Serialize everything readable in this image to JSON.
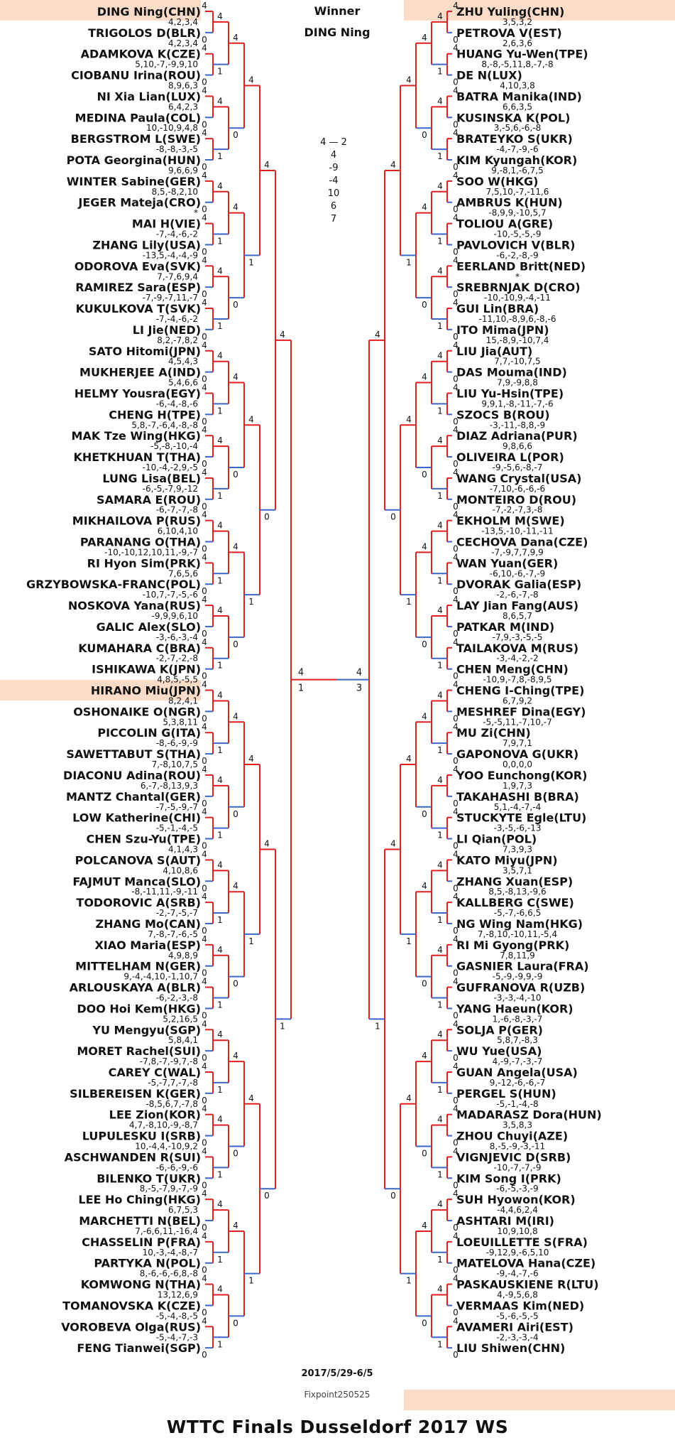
{
  "header": {
    "winner_label": "Winner",
    "winner_name": "DING Ning"
  },
  "footer": {
    "title": "WTTC Finals Dusseldorf 2017 WS",
    "dates": "2017/5/29-6/5",
    "credit": "Fixpoint250525"
  },
  "final": {
    "score_header": "4 — 2",
    "games": [
      "4",
      "-9",
      "-4",
      "10",
      "6",
      "7"
    ],
    "left_score": "4",
    "left_score_lo": "1",
    "right_score": "4",
    "right_score_lo": "3"
  },
  "colors": {
    "winner_line": "#e02020",
    "loser_line": "#3a66c8",
    "highlight_bg": "#fadcc8"
  },
  "left_players": [
    "DING Ning(CHN)",
    "TRIGOLOS D(BLR)",
    "ADAMKOVA K(CZE)",
    "CIOBANU Irina(ROU)",
    "NI Xia Lian(LUX)",
    "MEDINA Paula(COL)",
    "BERGSTROM L(SWE)",
    "POTA Georgina(HUN)",
    "WINTER Sabine(GER)",
    "JEGER Mateja(CRO)",
    "MAI H(VIE)",
    "ZHANG Lily(USA)",
    "ODOROVA Eva(SVK)",
    "RAMIREZ Sara(ESP)",
    "KUKULKOVA T(SVK)",
    "LI Jie(NED)",
    "SATO Hitomi(JPN)",
    "MUKHERJEE A(IND)",
    "HELMY Yousra(EGY)",
    "CHENG H(TPE)",
    "MAK Tze Wing(HKG)",
    "KHETKHUAN T(THA)",
    "LUNG Lisa(BEL)",
    "SAMARA E(ROU)",
    "MIKHAILOVA P(RUS)",
    "PARANANG O(THA)",
    "RI Hyon Sim(PRK)",
    "GRZYBOWSKA-FRANC(POL)",
    "NOSKOVA Yana(RUS)",
    "GALIC Alex(SLO)",
    "KUMAHARA C(BRA)",
    "ISHIKAWA K(JPN)",
    "HIRANO Miu(JPN)",
    "OSHONAIKE O(NGR)",
    "PICCOLIN G(ITA)",
    "SAWETTABUT S(THA)",
    "DIACONU Adina(ROU)",
    "MANTZ Chantal(GER)",
    "LOW Katherine(CHI)",
    "CHEN Szu-Yu(TPE)",
    "POLCANOVA S(AUT)",
    "FAJMUT Manca(SLO)",
    "TODOROVIC A(SRB)",
    "ZHANG Mo(CAN)",
    "XIAO Maria(ESP)",
    "MITTELHAM N(GER)",
    "ARLOUSKAYA A(BLR)",
    "DOO Hoi Kem(HKG)",
    "YU Mengyu(SGP)",
    "MORET Rachel(SUI)",
    "CAREY C(WAL)",
    "SILBEREISEN K(GER)",
    "LEE Zion(KOR)",
    "LUPULESKU I(SRB)",
    "ASCHWANDEN R(SUI)",
    "BILENKO T(UKR)",
    "LEE Ho Ching(HKG)",
    "MARCHETTI N(BEL)",
    "CHASSELIN P(FRA)",
    "PARTYKA N(POL)",
    "KOMWONG N(THA)",
    "TOMANOVSKA K(CZE)",
    "VOROBEVA Olga(RUS)",
    "FENG Tianwei(SGP)"
  ],
  "right_players": [
    "ZHU Yuling(CHN)",
    "PETROVA V(EST)",
    "HUANG Yu-Wen(TPE)",
    "DE N(LUX)",
    "BATRA Manika(IND)",
    "KUSINSKA K(POL)",
    "BRATEYKO S(UKR)",
    "KIM Kyungah(KOR)",
    "SOO W(HKG)",
    "AMBRUS K(HUN)",
    "TOLIOU A(GRE)",
    "PAVLOVICH V(BLR)",
    "EERLAND Britt(NED)",
    "SREBRNJAK D(CRO)",
    "GUI Lin(BRA)",
    "ITO Mima(JPN)",
    "LIU Jia(AUT)",
    "DAS Mouma(IND)",
    "LIU Yu-Hsin(TPE)",
    "SZOCS B(ROU)",
    "DIAZ Adriana(PUR)",
    "OLIVEIRA L(POR)",
    "WANG Crystal(USA)",
    "MONTEIRO D(ROU)",
    "EKHOLM M(SWE)",
    "CECHOVA Dana(CZE)",
    "WAN Yuan(GER)",
    "DVORAK Galia(ESP)",
    "LAY Jian Fang(AUS)",
    "PATKAR M(IND)",
    "TAILAKOVA M(RUS)",
    "CHEN Meng(CHN)",
    "CHENG I-Ching(TPE)",
    "MESHREF Dina(EGY)",
    "MU Zi(CHN)",
    "GAPONOVA G(UKR)",
    "YOO Eunchong(KOR)",
    "TAKAHASHI B(BRA)",
    "STUCKYTE Egle(LTU)",
    "LI Qian(POL)",
    "KATO Miyu(JPN)",
    "ZHANG Xuan(ESP)",
    "KALLBERG C(SWE)",
    "NG Wing Nam(HKG)",
    "RI Mi Gyong(PRK)",
    "GASNIER Laura(FRA)",
    "GUFRANOVA R(UZB)",
    "YANG Haeun(KOR)",
    "SOLJA P(GER)",
    "WU Yue(USA)",
    "GUAN Angela(USA)",
    "PERGEL S(HUN)",
    "MADARASZ Dora(HUN)",
    "ZHOU Chuyi(AZE)",
    "VIGNJEVIC D(SRB)",
    "KIM Song I(PRK)",
    "SUH Hyowon(KOR)",
    "ASHTARI M(IRI)",
    "LOEUILLETTE S(FRA)",
    "MATELOVA Hana(CZE)",
    "PASKAUSKIENE R(LTU)",
    "VERMAAS Kim(NED)",
    "AVAMERI Airi(EST)",
    "LIU Shiwen(CHN)"
  ],
  "left_r1_scores": [
    "4,2,3,4",
    "4,2,3,4",
    "5,10,-7,-9,9,10",
    "8,9,6,3",
    "6,4,2,3",
    "10,-10,9,4,8",
    "-8,-8,-3,-5",
    "9,6,6,9",
    "8,5,-8,2,10",
    "*",
    "-7,-4,-6,-2",
    "-13,5,-4,-4,-9",
    "7,-7,6,9,4",
    "-7,-9,-7,11,-7",
    "-7,-4,-6,-2",
    "8,2,-7,8,2",
    "4,5,4,3",
    "5,4,6,6",
    "-6,-4,-8,-6",
    "5,8,-7,-6,4,-8,-8",
    "-5,-8,-10,-4",
    "-10,-4,-2,9,-5",
    "-6,-5,-7,9,-12",
    "-6,-7,-7,-8",
    "6,10,4,10",
    "-10,-10,12,10,11,-9,-7",
    "7,6,5,6",
    "-10,7,-7,-5,-6",
    "-9,9,9,6,10",
    "-3,-6,-3,-4",
    "-2,-7,-2,-8",
    "4,8,5,-5,5",
    "8,2,4,1",
    "5,3,8,11",
    "-8,-6,-9,-9",
    "7,-8,10,7,5",
    "6,-7,-8,13,9,3",
    "-7,-5,-9,-7",
    "-5,-1,-4,-5",
    "4,1,4,3",
    "4,10,8,6",
    "-8,-11,11,-9,-11",
    "-2,-7,-5,-7",
    "7,-8,-7,-6,-5",
    "4,9,8,9",
    "9,-4,-4,10,-1,10,7",
    "-6,-2,-3,-8",
    "5,2,16,5",
    "5,8,4,1",
    "-7,8,-7,-9,7,-8",
    "-5,-7,7,-7,-8",
    "-8,5,6,7,-7,8",
    "4,7,-8,10,-9,-8,7",
    "10,-4,4,-10,9,2",
    "-6,-6,-9,-6",
    "8,-5,-7,9,-7,-9",
    "6,7,5,3",
    "7,-6,6,11,-16,4",
    "10,-3,-4,-8,-7",
    "8,-6,-6,-6,8,-8",
    "13,12,6,9",
    "-5,-4,-8,-5",
    "-5,-4,-7,-3"
  ],
  "right_r1_scores": [
    "3,5,3,2",
    "2,6,3,6",
    "8,-8,-5,11,8,-7,-8",
    "4,10,3,8",
    "6,6,3,5",
    "3,-5,6,-6,-8",
    "-4,-7,-9,-6",
    "9,-8,1,-6,7,5",
    "7,5,10,-7,-11,6",
    "-8,9,9,-10,5,7",
    "-10,-5,-5,-9",
    "-6,-2,-8,-9",
    "*",
    "-10,-10,9,-4,-11",
    "-11,10,-8,9,6,-8,-6",
    "15,-8,9,-10,7,4",
    "7,7,-10,7,5",
    "7,9,-9,8,8",
    "9,9,1,-8,-11,-7,-6",
    "-3,-11,-8,8,-9",
    "9,8,6,6",
    "-9,-5,6,-8,-7",
    "-7,10,-6,-6,-6",
    "-7,-2,-7,3,-8",
    "-13,5,-10,-11,-11",
    "-7,-9,7,7,9,9",
    "-6,10,-6,-7,-9",
    "-2,-6,-7,-8",
    "8,6,5,7",
    "-7,9,-3,-5,-5",
    "-3,-4,-2,-2",
    "-10,9,-7,8,-8,9,5",
    "6,7,9,2",
    "-5,-5,11,-7,10,-7",
    "7,9,7,1",
    "0,0,0,0",
    "1,9,7,3",
    "5,1,-4,-7,-4",
    "-3,-5,-6,-13",
    "7,3,9,3",
    "3,5,7,1",
    "8,5,-8,13,-9,6",
    "-5,-7,-6,6,5",
    "7,-8,10,-10,11,-5,4",
    "7,8,11,9",
    "-5,-9,-9,9,-9",
    "-3,-3,-4,-10",
    "1,-6,-8,-3,-7",
    "5,8,7,-8,3",
    "4,-9,-7,-3,-7",
    "9,-12,-6,-6,-7",
    "-5,-1,-4,-8",
    "3,5,8,3",
    "8,-5,-9,-3,-11",
    "-10,-7,-7,-9",
    "-6,-5,-3,-9",
    "-4,4,6,2,4",
    "10,9,10,8",
    "-9,12,9,-6,5,10",
    "-9,-4,-7,-6",
    "4,-9,5,6,8",
    "-5,-6,-5,-5",
    "-2,-3,-3,-4"
  ]
}
